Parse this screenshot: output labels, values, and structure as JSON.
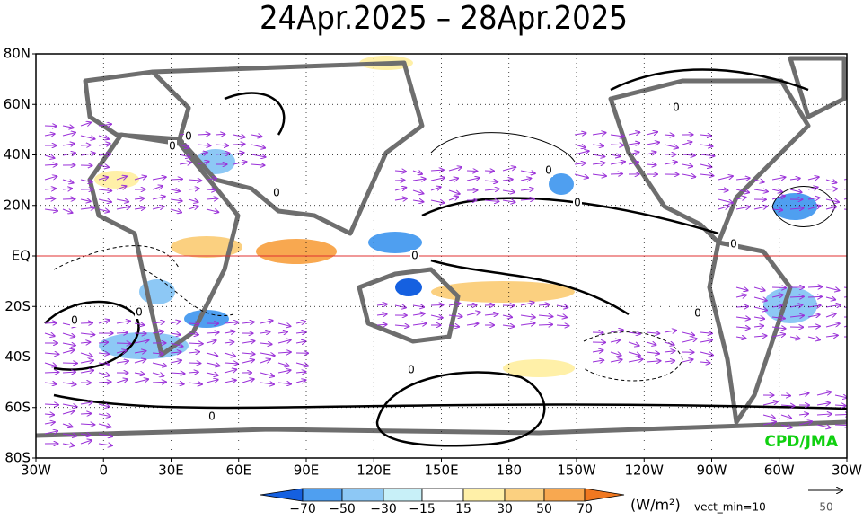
{
  "title": "24Apr.2025 – 28Apr.2025",
  "lat_labels": [
    "80N",
    "60N",
    "40N",
    "20N",
    "EQ",
    "20S",
    "40S",
    "60S",
    "80S"
  ],
  "lon_labels": [
    "30W",
    "0",
    "30E",
    "60E",
    "90E",
    "120E",
    "150E",
    "180",
    "150W",
    "120W",
    "90W",
    "60W",
    "30W"
  ],
  "colorbar": {
    "labels": [
      "−70",
      "−50",
      "−30",
      "−15",
      "15",
      "30",
      "50",
      "70"
    ],
    "unit": "(W/m²)",
    "note": "vect_min=10"
  },
  "reference_vector": "50",
  "credit": "CPD/JMA",
  "contour_labels": [
    "0",
    "0",
    "0",
    "0",
    "0",
    "0",
    "0",
    "0",
    "0",
    "0",
    "0",
    "0",
    "0"
  ]
}
